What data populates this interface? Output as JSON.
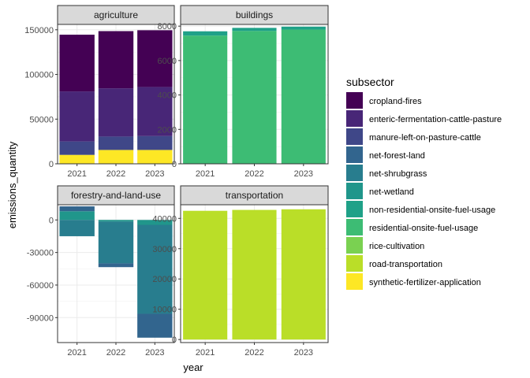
{
  "chart_data": {
    "type": "bar",
    "layout": "facet_wrap stacked bars, free y scales",
    "xlabel": "year",
    "ylabel": "emissions_quantity",
    "legend": {
      "title": "subsector",
      "placement": "right",
      "entries": [
        {
          "name": "cropland-fires",
          "color": "#440154"
        },
        {
          "name": "enteric-fermentation-cattle-pasture",
          "color": "#482677"
        },
        {
          "name": "manure-left-on-pasture-cattle",
          "color": "#3f4788"
        },
        {
          "name": "net-forest-land",
          "color": "#32658e"
        },
        {
          "name": "net-shrubgrass",
          "color": "#287d8e"
        },
        {
          "name": "net-wetland",
          "color": "#20968b"
        },
        {
          "name": "non-residential-onsite-fuel-usage",
          "color": "#1fa188"
        },
        {
          "name": "residential-onsite-fuel-usage",
          "color": "#3dbc74"
        },
        {
          "name": "rice-cultivation",
          "color": "#7ad151"
        },
        {
          "name": "road-transportation",
          "color": "#bade28"
        },
        {
          "name": "synthetic-fertilizer-application",
          "color": "#fde725"
        }
      ]
    },
    "panels": [
      {
        "title": "agriculture",
        "categories": [
          "2021",
          "2022",
          "2023"
        ],
        "ylim": [
          0,
          156000
        ],
        "yticks": [
          0,
          50000,
          100000,
          150000
        ],
        "ytick_labels": [
          "0",
          "50000",
          "100000",
          "150000"
        ],
        "series": [
          {
            "name": "synthetic-fertilizer-application",
            "values": [
              10000,
              15500,
              15500
            ]
          },
          {
            "name": "manure-left-on-pasture-cattle",
            "values": [
              15000,
              15000,
              15500
            ]
          },
          {
            "name": "enteric-fermentation-cattle-pasture",
            "values": [
              56000,
              54000,
              55000
            ]
          },
          {
            "name": "cropland-fires",
            "values": [
              63500,
              64000,
              63500
            ]
          }
        ]
      },
      {
        "title": "buildings",
        "categories": [
          "2021",
          "2022",
          "2023"
        ],
        "ylim": [
          0,
          8100
        ],
        "yticks": [
          0,
          2000,
          4000,
          6000,
          8000
        ],
        "ytick_labels": [
          "0",
          "2000",
          "4000",
          "6000",
          "8000"
        ],
        "series": [
          {
            "name": "residential-onsite-fuel-usage",
            "values": [
              7450,
              7720,
              7800
            ]
          },
          {
            "name": "non-residential-onsite-fuel-usage",
            "values": [
              250,
              180,
              170
            ]
          }
        ]
      },
      {
        "title": "forestry-and-land-use",
        "categories": [
          "2021",
          "2022",
          "2023"
        ],
        "ylim": [
          -113000,
          14000
        ],
        "yticks": [
          0,
          -30000,
          -60000,
          -90000
        ],
        "ytick_labels": [
          "0",
          "-30000",
          "-60000",
          "-90000"
        ],
        "series": [
          {
            "name": "net-wetland",
            "values": [
              8000,
              -1500,
              -4500
            ]
          },
          {
            "name": "net-shrubgrass",
            "values": [
              -15000,
              -38500,
              -82000
            ]
          },
          {
            "name": "net-forest-land",
            "values": [
              4500,
              -3500,
              -22000
            ]
          }
        ]
      },
      {
        "title": "transportation",
        "categories": [
          "2021",
          "2022",
          "2023"
        ],
        "ylim": [
          -1000,
          44500
        ],
        "yticks": [
          0,
          10000,
          20000,
          30000,
          40000
        ],
        "ytick_labels": [
          "0",
          "10000",
          "20000",
          "30000",
          "40000"
        ],
        "series": [
          {
            "name": "road-transportation",
            "values": [
              42500,
              42800,
              43000
            ]
          }
        ]
      }
    ],
    "grid": true
  }
}
